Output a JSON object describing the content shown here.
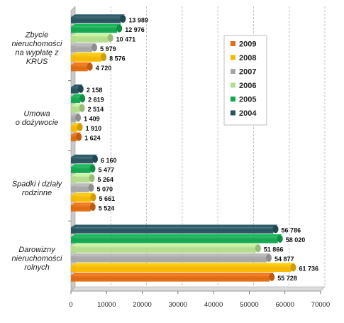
{
  "chart_data": {
    "type": "bar",
    "orientation": "horizontal",
    "categories": [
      [
        "Zbycie",
        "nieruchomości",
        "na wypłatę z",
        "KRUS"
      ],
      [
        "Umowa",
        "o dożywocie"
      ],
      [
        "Spadki i działy",
        "rodzinne"
      ],
      [
        "Darowizny",
        "nieruchomości",
        "rolnych"
      ]
    ],
    "series": [
      {
        "name": "2004",
        "color": "#27535f",
        "values": [
          13989,
          2158,
          6160,
          56786
        ],
        "labels": [
          "13 989",
          "2 158",
          "6 160",
          "56 786"
        ]
      },
      {
        "name": "2005",
        "color": "#12a64f",
        "values": [
          12976,
          2619,
          5477,
          58020
        ],
        "labels": [
          "12 976",
          "2 619",
          "5 477",
          "58 020"
        ]
      },
      {
        "name": "2006",
        "color": "#b3dc8c",
        "values": [
          10471,
          2514,
          5264,
          51866
        ],
        "labels": [
          "10 471",
          "2 514",
          "5 264",
          "51 866"
        ]
      },
      {
        "name": "2007",
        "color": "#a7a7a7",
        "values": [
          5979,
          1409,
          5070,
          54877
        ],
        "labels": [
          "5 979",
          "1 409",
          "5 070",
          "54 877"
        ]
      },
      {
        "name": "2008",
        "color": "#f5b800",
        "values": [
          8576,
          1910,
          5661,
          61736
        ],
        "labels": [
          "8 576",
          "1 910",
          "5 661",
          "61 736"
        ]
      },
      {
        "name": "2009",
        "color": "#e06b10",
        "values": [
          4720,
          1624,
          5524,
          55728
        ],
        "labels": [
          "4 720",
          "1 624",
          "5 524",
          "55 728"
        ]
      }
    ],
    "xlim": [
      0,
      70000
    ],
    "xticks": [
      "0",
      "10000",
      "20000",
      "30000",
      "40000",
      "50000",
      "60000",
      "70000"
    ],
    "legend": {
      "placement": "right",
      "order": [
        "2009",
        "2008",
        "2007",
        "2006",
        "2005",
        "2004"
      ]
    },
    "grid": true
  }
}
